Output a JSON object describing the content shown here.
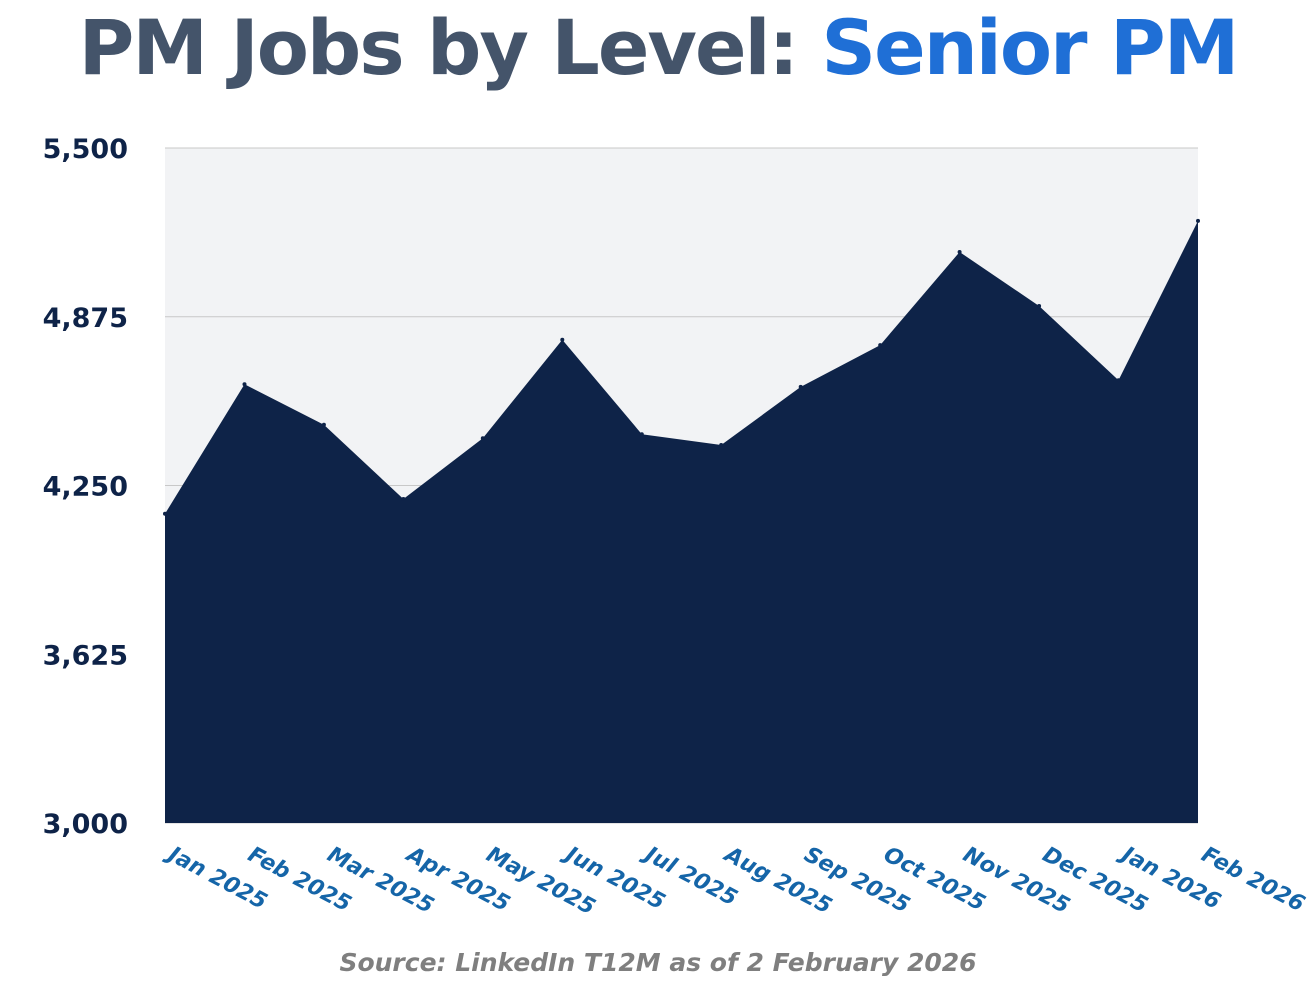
{
  "title": {
    "main": "PM Jobs by Level: ",
    "accent": "Senior PM"
  },
  "source": "Source: LinkedIn T12M as of 2 February 2026",
  "colors": {
    "title_main": "#44546a",
    "title_accent": "#1f6fd6",
    "area_fill": "#0e2348",
    "plot_background": "#f2f3f5",
    "gridline": "#c8c8c8",
    "y_tick_label": "#0e2348",
    "x_tick_label": "#1565a8",
    "source_text": "#7f7f7f"
  },
  "chart_data": {
    "type": "area",
    "title": "PM Jobs by Level: Senior PM",
    "xlabel": "",
    "ylabel": "",
    "categories": [
      "Jan 2025",
      "Feb 2025",
      "Mar 2025",
      "Apr 2025",
      "May 2025",
      "Jun 2025",
      "Jul 2025",
      "Aug 2025",
      "Sep 2025",
      "Oct 2025",
      "Nov 2025",
      "Dec 2025",
      "Jan 2026",
      "Feb 2026"
    ],
    "series": [
      {
        "values": [
          4145,
          4625,
          4475,
          4200,
          4425,
          4790,
          4440,
          4400,
          4615,
          4770,
          5115,
          4915,
          4640,
          5230
        ]
      }
    ],
    "ylim": [
      3000,
      5500
    ],
    "yticks": [
      3000,
      3625,
      4250,
      4875,
      5500
    ],
    "ytick_labels": [
      "3,000",
      "3,625",
      "4,250",
      "4,875",
      "5,500"
    ],
    "grid": true,
    "legend": "none"
  }
}
